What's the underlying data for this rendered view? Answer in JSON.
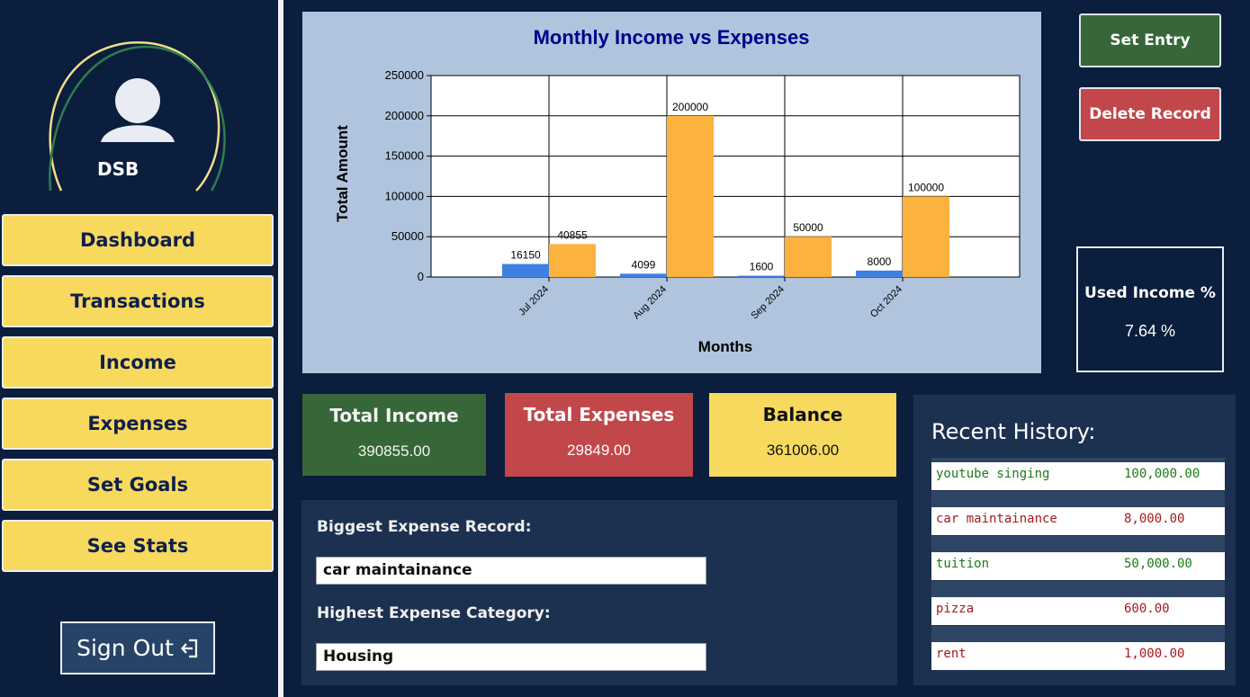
{
  "user": {
    "name": "DSB"
  },
  "sidebar": {
    "items": [
      {
        "label": "Dashboard"
      },
      {
        "label": "Transactions"
      },
      {
        "label": "Income"
      },
      {
        "label": "Expenses"
      },
      {
        "label": "Set Goals"
      },
      {
        "label": "See Stats"
      }
    ],
    "signout_label": "Sign Out"
  },
  "actions": {
    "set_entry": "Set Entry",
    "delete_record": "Delete Record"
  },
  "used_income": {
    "label": "Used Income %",
    "value": "7.64 %"
  },
  "summary": {
    "income": {
      "title": "Total Income",
      "value": "390855.00"
    },
    "expenses": {
      "title": "Total Expenses",
      "value": "29849.00"
    },
    "balance": {
      "title": "Balance",
      "value": "361006.00"
    }
  },
  "details": {
    "biggest_label": "Biggest Expense Record:",
    "biggest_value": "car maintainance",
    "category_label": "Highest Expense Category:",
    "category_value": "Housing"
  },
  "history": {
    "title": "Recent History:",
    "rows": [
      {
        "name": "youtube singing",
        "amount": "100,000.00",
        "kind": "income"
      },
      {
        "name": "car maintainance",
        "amount": "8,000.00",
        "kind": "expense"
      },
      {
        "name": "tuition",
        "amount": "50,000.00",
        "kind": "income"
      },
      {
        "name": "pizza",
        "amount": "600.00",
        "kind": "expense"
      },
      {
        "name": "rent",
        "amount": "1,000.00",
        "kind": "expense"
      }
    ]
  },
  "colors": {
    "expense_bar": "#3f7fe4",
    "income_bar": "#fbb23f",
    "chart_bg": "#b0c4de",
    "title_color": "#00008b"
  },
  "chart_data": {
    "type": "bar",
    "title": "Monthly Income vs Expenses",
    "xlabel": "Months",
    "ylabel": "Total Amount",
    "categories": [
      "Jul 2024",
      "Aug 2024",
      "Sep 2024",
      "Oct 2024"
    ],
    "series": [
      {
        "values": [
          16150,
          4099,
          1600,
          8000
        ]
      },
      {
        "values": [
          40855,
          200000,
          50000,
          100000
        ]
      }
    ],
    "ylim": [
      0,
      250000
    ],
    "yticks": [
      0,
      50000,
      100000,
      150000,
      200000,
      250000
    ],
    "grid": true
  }
}
